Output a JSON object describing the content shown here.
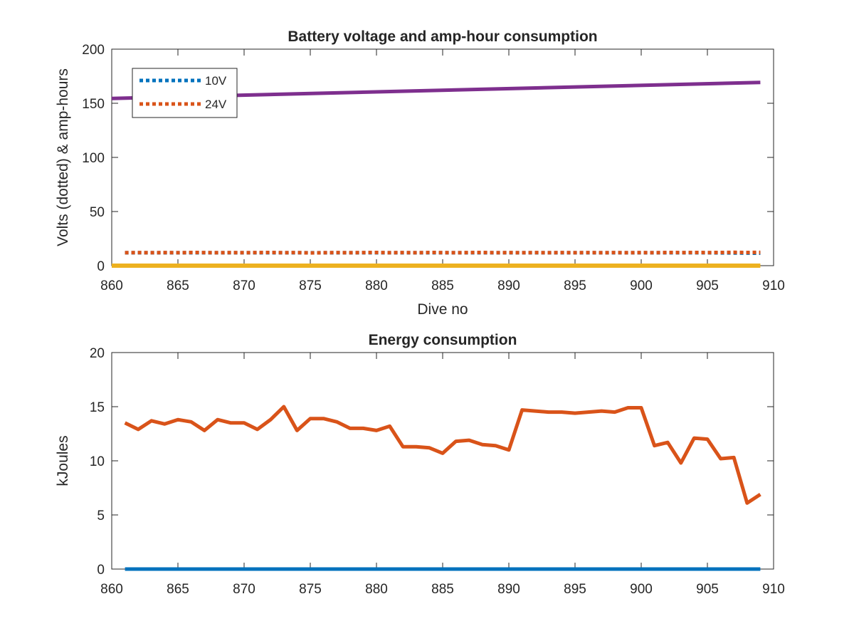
{
  "chart_data": [
    {
      "type": "line",
      "title": "Battery voltage and amp-hour consumption",
      "xlabel": "Dive no",
      "ylabel": "Volts (dotted) & amp-hours",
      "xlim": [
        860,
        910
      ],
      "ylim": [
        0,
        200
      ],
      "xticks": [
        860,
        865,
        870,
        875,
        880,
        885,
        890,
        895,
        900,
        905,
        910
      ],
      "yticks": [
        0,
        50,
        100,
        150,
        200
      ],
      "grid": false,
      "legend_position": "top-left",
      "series": [
        {
          "name": "10V",
          "style": "dotted",
          "color": "#0072BD",
          "x": [
            861,
            862,
            863,
            864,
            865,
            866,
            867,
            868,
            869,
            870,
            871,
            872,
            873,
            874,
            875,
            876,
            877,
            878,
            879,
            880,
            881,
            882,
            883,
            884,
            885,
            886,
            887,
            888,
            889,
            890,
            891,
            892,
            893,
            894,
            895,
            896,
            897,
            898,
            899,
            900,
            901,
            902,
            903,
            904,
            905,
            906,
            907,
            908,
            909
          ],
          "values": [
            11.9,
            11.9,
            11.9,
            11.9,
            11.9,
            11.9,
            11.9,
            11.9,
            11.9,
            11.9,
            11.9,
            11.9,
            11.9,
            11.9,
            11.9,
            11.9,
            11.9,
            11.9,
            11.9,
            11.9,
            11.9,
            11.9,
            11.9,
            11.9,
            11.9,
            11.9,
            11.9,
            11.9,
            11.9,
            11.9,
            11.9,
            11.9,
            11.9,
            11.9,
            11.9,
            11.9,
            11.9,
            11.9,
            11.9,
            11.9,
            11.9,
            11.9,
            11.9,
            11.9,
            11.9,
            11.8,
            11.7,
            11.6,
            11.5
          ]
        },
        {
          "name": "24V",
          "style": "dotted",
          "color": "#D95319",
          "x": [
            861,
            862,
            863,
            864,
            865,
            866,
            867,
            868,
            869,
            870,
            871,
            872,
            873,
            874,
            875,
            876,
            877,
            878,
            879,
            880,
            881,
            882,
            883,
            884,
            885,
            886,
            887,
            888,
            889,
            890,
            891,
            892,
            893,
            894,
            895,
            896,
            897,
            898,
            899,
            900,
            901,
            902,
            903,
            904,
            905,
            906,
            907,
            908,
            909
          ],
          "values": [
            12.0,
            12.1,
            12.0,
            12.1,
            12.0,
            12.2,
            12.1,
            12.0,
            12.1,
            12.0,
            12.1,
            12.2,
            12.0,
            12.1,
            11.8,
            12.0,
            12.1,
            12.0,
            12.1,
            12.2,
            12.0,
            12.1,
            12.0,
            12.2,
            12.1,
            12.0,
            12.1,
            12.2,
            12.0,
            12.1,
            12.0,
            12.1,
            12.0,
            12.1,
            12.0,
            12.1,
            12.0,
            12.1,
            12.0,
            12.1,
            12.0,
            12.2,
            12.1,
            12.2,
            12.1,
            12.2,
            12.3,
            12.2,
            12.3
          ]
        },
        {
          "style": "solid",
          "color": "#EDB120",
          "x": [
            860,
            909
          ],
          "values": [
            0,
            0
          ]
        },
        {
          "style": "solid",
          "color": "#7E2F8E",
          "x": [
            860,
            909
          ],
          "values": [
            154.5,
            169.3
          ]
        }
      ]
    },
    {
      "type": "line",
      "title": "Energy consumption",
      "xlabel": "",
      "ylabel": "kJoules",
      "xlim": [
        860,
        910
      ],
      "ylim": [
        0,
        20
      ],
      "xticks": [
        860,
        865,
        870,
        875,
        880,
        885,
        890,
        895,
        900,
        905,
        910
      ],
      "yticks": [
        0,
        5,
        10,
        15,
        20
      ],
      "grid": false,
      "series": [
        {
          "style": "solid",
          "color": "#0072BD",
          "x": [
            861,
            909
          ],
          "values": [
            0,
            0
          ]
        },
        {
          "style": "solid",
          "color": "#D95319",
          "x": [
            861,
            862,
            863,
            864,
            865,
            866,
            867,
            868,
            869,
            870,
            871,
            872,
            873,
            874,
            875,
            876,
            877,
            878,
            879,
            880,
            881,
            882,
            883,
            884,
            885,
            886,
            887,
            888,
            889,
            890,
            891,
            892,
            893,
            894,
            895,
            896,
            897,
            898,
            899,
            900,
            901,
            902,
            903,
            904,
            905,
            906,
            907,
            908,
            909
          ],
          "values": [
            13.5,
            12.9,
            13.7,
            13.4,
            13.8,
            13.6,
            12.8,
            13.8,
            13.5,
            13.5,
            12.9,
            13.8,
            15.0,
            12.8,
            13.9,
            13.9,
            13.6,
            13.0,
            13.0,
            12.8,
            13.2,
            11.3,
            11.3,
            11.2,
            10.7,
            11.8,
            11.9,
            11.5,
            11.4,
            11.0,
            14.7,
            14.6,
            14.5,
            14.5,
            14.4,
            14.5,
            14.6,
            14.5,
            14.9,
            14.9,
            11.4,
            11.7,
            9.8,
            12.1,
            12.0,
            10.2,
            10.3,
            6.1,
            6.9
          ]
        }
      ]
    }
  ]
}
